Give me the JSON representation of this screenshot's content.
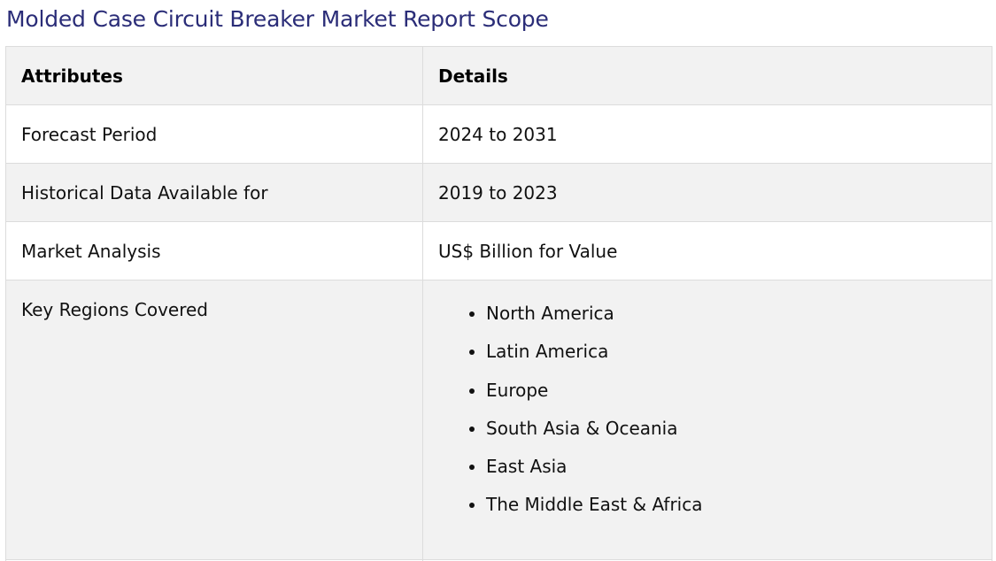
{
  "title": "Molded Case Circuit Breaker Market Report Scope",
  "table": {
    "headers": [
      "Attributes",
      "Details"
    ],
    "rows": [
      {
        "attribute": "Forecast Period",
        "detail": "2024 to 2031"
      },
      {
        "attribute": "Historical Data Available for",
        "detail": "2019 to 2023"
      },
      {
        "attribute": "Market Analysis",
        "detail": "US$ Billion for Value"
      }
    ],
    "regions": {
      "attribute": "Key Regions Covered",
      "items": [
        "North America",
        "Latin America",
        "Europe",
        "South Asia & Oceania",
        "East Asia",
        "The Middle East & Africa"
      ]
    }
  },
  "colors": {
    "title": "#2b2d78",
    "row_shade": "#f2f2f2",
    "border": "#dcdcdc"
  }
}
